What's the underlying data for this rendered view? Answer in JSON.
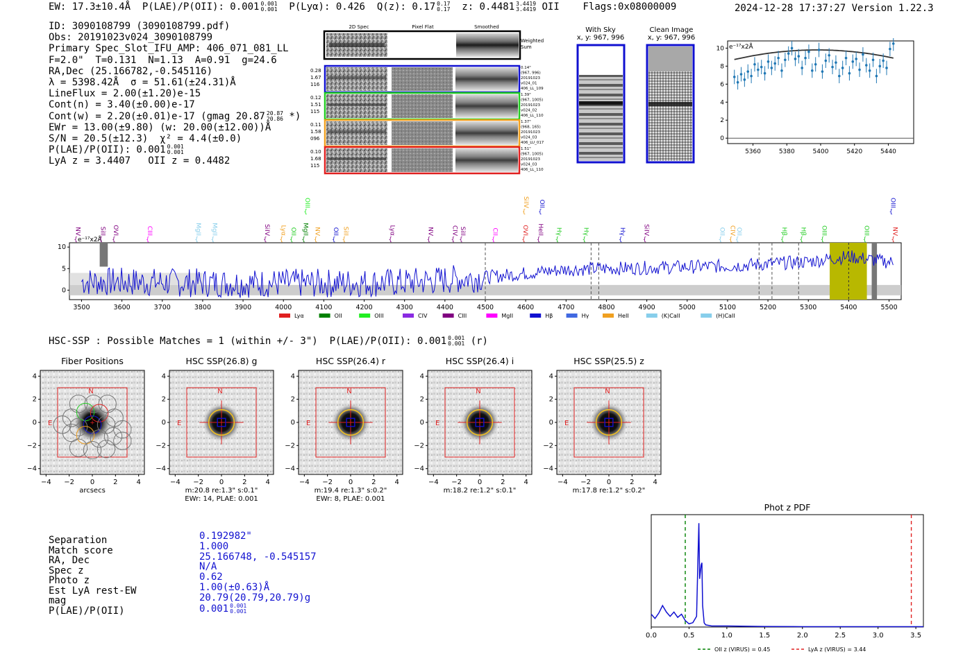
{
  "header": {
    "ew": "EW: 17.3±10.4Å",
    "plae_label": "P(LAE)/P(OII): 0.001",
    "plae_sup": "0.001",
    "plae_sub": "0.001",
    "plya": "P(Lyα): 0.426",
    "qz_label": "Q(z): 0.17",
    "qz_sup": "0.17",
    "qz_sub": "0.17",
    "z_label": "z: 0.4481",
    "z_sup": "3.4419",
    "z_sub": "3.4419",
    "z_line": "OII",
    "flags": "Flags:0x08000009",
    "datetime": "2024-12-28 17:37:27",
    "version": "Version 1.22.3"
  },
  "info": {
    "id": "ID: 3090108799 (3090108799.pdf)",
    "obs": "Obs: 20191023v024_3090108799",
    "primary": "Primary Spec_Slot_IFU_AMP: 406_071_081_LL",
    "fparams": "F=2.0\"  T=0.131  N=1.13  A=0.91  g=24.6",
    "radec": "RA,Dec (25.166782,-0.545116)",
    "lambda": "λ = 5398.42Å  σ = 51.61(±24.31)Å",
    "lineflux": "LineFlux = 2.00(±1.20)e-15",
    "contn": "Cont(n) = 3.40(±0.00)e-17",
    "contw": "Cont(w) = 2.20(±0.01)e-17 (gmag 20.87",
    "contw_sup": "20.87",
    "contw_sub": "20.86",
    "contw_end": "*)",
    "ewr": "EWr = 13.00(±9.80) (w: 20.00(±12.00))Å",
    "sn": "S/N = 20.5(±12.3)  χ² = 4.4(±0.0)",
    "plae": "P(LAE)/P(OII): 0.001",
    "plae_sup": "0.001",
    "plae_sub": "0.001",
    "lyaz": "LyA z = 3.4407   OII z = 0.4482"
  },
  "cutouts": {
    "col_titles": [
      "2D Spec",
      "Pixel Flat",
      "Smoothed"
    ],
    "weighted_sum": [
      "Weighted",
      "Sum"
    ],
    "rows": [
      {
        "left": [
          "0.28",
          "1.67",
          "116"
        ],
        "right": [
          "0.14\"",
          "(967, 996)",
          "20191023",
          "v024_01",
          "406_LL_109"
        ],
        "color": "#1010d0"
      },
      {
        "left": [
          "0.12",
          "1.51",
          "115"
        ],
        "right": [
          "1.39\"",
          "(967, 1005)",
          "20191023",
          "v024_02",
          "406_LL_110"
        ],
        "color": "#22cc22"
      },
      {
        "left": [
          "0.11",
          "1.58",
          "096"
        ],
        "right": [
          "1.37\"",
          "(968, 165)",
          "20191023",
          "v024_03",
          "406_LU_017"
        ],
        "color": "#f0a020"
      },
      {
        "left": [
          "0.10",
          "1.68",
          "115"
        ],
        "right": [
          "1.51\"",
          "(967, 1005)",
          "20191023",
          "v024_03",
          "406_LL_110"
        ],
        "color": "#e02020"
      }
    ]
  },
  "sky": {
    "with_sky_title": "With Sky",
    "with_sky_coords": "x, y: 967, 996",
    "clean_title": "Clean Image",
    "clean_coords": "x, y: 967, 996"
  },
  "chart_data": [
    {
      "type": "scatter",
      "name": "zoom-spectrum",
      "units_label": "e⁻¹⁷x2Å",
      "xlim": [
        5345,
        5455
      ],
      "ylim": [
        -0.6,
        10.8
      ],
      "xticks": [
        5360,
        5380,
        5400,
        5420,
        5440
      ],
      "yticks": [
        0,
        2,
        4,
        6,
        8,
        10
      ],
      "x": [
        5349,
        5351,
        5353,
        5355,
        5357,
        5359,
        5361,
        5363,
        5365,
        5367,
        5369,
        5371,
        5373,
        5375,
        5377,
        5379,
        5381,
        5383,
        5385,
        5387,
        5389,
        5391,
        5393,
        5395,
        5397,
        5399,
        5401,
        5403,
        5405,
        5407,
        5409,
        5411,
        5413,
        5415,
        5417,
        5419,
        5421,
        5423,
        5425,
        5427,
        5429,
        5431,
        5433,
        5435,
        5437,
        5439,
        5441,
        5443
      ],
      "y": [
        6.8,
        6.2,
        7.1,
        6.5,
        7.4,
        6.9,
        8.2,
        7.6,
        7.9,
        7.2,
        8.5,
        7.8,
        8.3,
        8.9,
        7.5,
        8.7,
        9.4,
        10.0,
        8.8,
        9.1,
        7.8,
        8.9,
        9.6,
        7.5,
        8.2,
        9.8,
        7.4,
        8.6,
        9.2,
        7.9,
        8.4,
        6.9,
        7.8,
        8.9,
        7.2,
        8.5,
        8.8,
        7.6,
        9.3,
        8.1,
        7.5,
        8.7,
        6.9,
        8.0,
        8.6,
        7.8,
        9.9,
        10.5
      ],
      "model_curve": {
        "peak_x": 5398,
        "peak_y": 9.8,
        "end_y": 8.9
      }
    },
    {
      "type": "line",
      "name": "full-spectrum",
      "units_label": "e⁻¹⁷x2Å",
      "xlim": [
        3470,
        5530
      ],
      "ylim": [
        -2.2,
        11
      ],
      "xticks": [
        3500,
        3600,
        3700,
        3800,
        3900,
        4000,
        4100,
        4200,
        4300,
        4400,
        4500,
        4600,
        4700,
        4800,
        4900,
        5000,
        5100,
        5200,
        5300,
        5400,
        5500
      ],
      "yticks": [
        0,
        5,
        10
      ],
      "highlight_range": [
        5353,
        5445
      ],
      "center_line": 5400,
      "dashed_lines": [
        4500,
        4762,
        4781,
        5178,
        5210,
        5276
      ],
      "line_labels": [
        {
          "label": "NV",
          "x": 3486,
          "color": "#800080",
          "row": 1
        },
        {
          "label": "SiII",
          "x": 3548,
          "color": "#800080",
          "row": 1
        },
        {
          "label": "OVI",
          "x": 3580,
          "color": "#800080",
          "row": 1
        },
        {
          "label": "CIII",
          "x": 3664,
          "color": "#ff00ff",
          "row": 1
        },
        {
          "label": "MgII",
          "x": 3785,
          "color": "#87ceeb",
          "row": 1
        },
        {
          "label": "MgII",
          "x": 3825,
          "color": "#87ceeb",
          "row": 1
        },
        {
          "label": "SiIV",
          "x": 3955,
          "color": "#800080",
          "row": 1
        },
        {
          "label": "Lyα",
          "x": 3995,
          "color": "#f0a020",
          "row": 1
        },
        {
          "label": "OII",
          "x": 4020,
          "color": "#22cc22",
          "row": 1
        },
        {
          "label": "MgII",
          "x": 4050,
          "color": "#008000",
          "row": 1
        },
        {
          "label": "OIII",
          "x": 4055,
          "color": "#22ee22",
          "row": 0
        },
        {
          "label": "NV",
          "x": 4080,
          "color": "#f0a020",
          "row": 1
        },
        {
          "label": "OII",
          "x": 4125,
          "color": "#1010d0",
          "row": 1
        },
        {
          "label": "SiII",
          "x": 4150,
          "color": "#f0a020",
          "row": 1
        },
        {
          "label": "Lyα",
          "x": 4265,
          "color": "#800080",
          "row": 1
        },
        {
          "label": "NV",
          "x": 4360,
          "color": "#800080",
          "row": 1
        },
        {
          "label": "CIV",
          "x": 4420,
          "color": "#800080",
          "row": 1
        },
        {
          "label": "SiII",
          "x": 4440,
          "color": "#800080",
          "row": 1
        },
        {
          "label": "CII",
          "x": 4520,
          "color": "#ff00ff",
          "row": 1
        },
        {
          "label": "OVI",
          "x": 4595,
          "color": "#e02020",
          "row": 1
        },
        {
          "label": "SiIV",
          "x": 4596,
          "color": "#f0a020",
          "row": 0
        },
        {
          "label": "OII",
          "x": 4636,
          "color": "#1010d0",
          "row": 0
        },
        {
          "label": "HeII",
          "x": 4632,
          "color": "#800080",
          "row": 1
        },
        {
          "label": "Hγ",
          "x": 4678,
          "color": "#22cc22",
          "row": 1
        },
        {
          "label": "Hγ",
          "x": 4745,
          "color": "#22cc22",
          "row": 1
        },
        {
          "label": "Hγ",
          "x": 4835,
          "color": "#1010d0",
          "row": 1
        },
        {
          "label": "SiIV",
          "x": 4895,
          "color": "#800080",
          "row": 1
        },
        {
          "label": "OII",
          "x": 5082,
          "color": "#87ceeb",
          "row": 1
        },
        {
          "label": "CIV",
          "x": 5108,
          "color": "#f0a020",
          "row": 1
        },
        {
          "label": "OII",
          "x": 5124,
          "color": "#87ceeb",
          "row": 1
        },
        {
          "label": "Hβ",
          "x": 5236,
          "color": "#22cc22",
          "row": 1
        },
        {
          "label": "Hβ",
          "x": 5283,
          "color": "#22cc22",
          "row": 1
        },
        {
          "label": "OIII",
          "x": 5335,
          "color": "#22cc22",
          "row": 1
        },
        {
          "label": "OIII",
          "x": 5440,
          "color": "#22cc22",
          "row": 1
        },
        {
          "label": "OIII",
          "x": 5505,
          "color": "#1010d0",
          "row": 0
        },
        {
          "label": "NV",
          "x": 5510,
          "color": "#e02020",
          "row": 1
        }
      ],
      "legend": [
        {
          "label": "Lyα",
          "color": "#e02020"
        },
        {
          "label": "OII",
          "color": "#008000"
        },
        {
          "label": "OIII",
          "color": "#22ee22"
        },
        {
          "label": "CIV",
          "color": "#8a2be2"
        },
        {
          "label": "CIII",
          "color": "#800080"
        },
        {
          "label": "MgII",
          "color": "#ff00ff"
        },
        {
          "label": "Hβ",
          "color": "#1010d0"
        },
        {
          "label": "Hγ",
          "color": "#4169e1"
        },
        {
          "label": "HeII",
          "color": "#f0a020"
        },
        {
          "label": "(K)CaII",
          "color": "#87ceeb"
        },
        {
          "label": "(H)CaII",
          "color": "#87ceeb"
        }
      ],
      "trend": [
        {
          "x": 3500,
          "y": 2.0
        },
        {
          "x": 3700,
          "y": 1.8
        },
        {
          "x": 3900,
          "y": 1.6
        },
        {
          "x": 4100,
          "y": 1.6
        },
        {
          "x": 4300,
          "y": 1.8
        },
        {
          "x": 4500,
          "y": 3.0
        },
        {
          "x": 4700,
          "y": 4.8
        },
        {
          "x": 4900,
          "y": 5.2
        },
        {
          "x": 5100,
          "y": 5.6
        },
        {
          "x": 5300,
          "y": 6.6
        },
        {
          "x": 5400,
          "y": 7.8
        },
        {
          "x": 5500,
          "y": 6.5
        }
      ]
    },
    {
      "type": "line",
      "name": "phot-z-pdf",
      "title": "Phot z PDF",
      "xlim": [
        0,
        3.6
      ],
      "ylim": [
        0,
        1.05
      ],
      "xticks": [
        0.0,
        0.5,
        1.0,
        1.5,
        2.0,
        2.5,
        3.0,
        3.5
      ],
      "oii_z": 0.45,
      "lya_z": 3.44,
      "legend": [
        {
          "label": "OII z (VIRUS) = 0.45",
          "color": "#008000"
        },
        {
          "label": "LyA z (VIRUS) = 3.44",
          "color": "#e02020"
        }
      ],
      "x": [
        0.0,
        0.05,
        0.1,
        0.15,
        0.2,
        0.25,
        0.3,
        0.35,
        0.4,
        0.45,
        0.5,
        0.55,
        0.6,
        0.62,
        0.63,
        0.64,
        0.66,
        0.67,
        0.68,
        0.7,
        0.72,
        0.8,
        1.0,
        1.5,
        2.0,
        3.0,
        3.6
      ],
      "y": [
        0.12,
        0.08,
        0.13,
        0.2,
        0.14,
        0.1,
        0.14,
        0.09,
        0.12,
        0.06,
        0.03,
        0.04,
        0.1,
        0.7,
        0.97,
        0.45,
        0.58,
        0.6,
        0.2,
        0.04,
        0.02,
        0.01,
        0.01,
        0.005,
        0.003,
        0.003,
        0.003
      ]
    }
  ],
  "hsc": {
    "line": "HSC-SSP : Possible Matches = 1 (within +/- 3\")  P(LAE)/P(OII): 0.001",
    "sup": "0.001",
    "sub": "0.001",
    "suffix": "(r)",
    "panels": [
      {
        "title": "Fiber Positions",
        "caption1": "arcsecs",
        "caption2": "",
        "type": "fiber"
      },
      {
        "title": "HSC SSP(26.8) g",
        "caption1": "m:20.8  re:1.3\"  s:0.1\"",
        "caption2": "EWr: 14, PLAE: 0.001",
        "type": "band"
      },
      {
        "title": "HSC SSP(26.4) r",
        "caption1": "m:19.4  re:1.3\"  s:0.2\"",
        "caption2": "EWr: 8, PLAE: 0.001",
        "type": "band"
      },
      {
        "title": "HSC SSP(26.4) i",
        "caption1": "m:18.2  re:1.2\"  s:0.1\"",
        "caption2": "",
        "type": "band"
      },
      {
        "title": "HSC SSP(25.5) z",
        "caption1": "m:17.8  re:1.2\"  s:0.2\"",
        "caption2": "",
        "type": "band"
      }
    ],
    "north": "N",
    "east": "E",
    "ticks": [
      "4",
      "2",
      "0",
      "−2",
      "−4"
    ],
    "xticks": [
      "−4",
      "−2",
      "0",
      "2",
      "4"
    ]
  },
  "match": {
    "labels": [
      "Separation",
      "Match score",
      "RA, Dec",
      "Spec z",
      "Photo z",
      "Est LyA rest-EW",
      "mag",
      "P(LAE)/P(OII)"
    ],
    "values": [
      "0.192982\"",
      "1.000",
      "25.166748, -0.545157",
      "N/A",
      "0.62",
      "1.00(±0.63)Å",
      "20.79(20.79,20.79)g",
      "0.001"
    ],
    "plae_sup": "0.001",
    "plae_sub": "0.001"
  }
}
